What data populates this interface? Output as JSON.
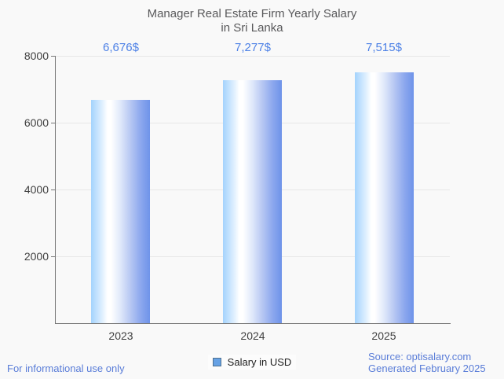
{
  "title": {
    "line1": "Manager Real Estate Firm Yearly Salary",
    "line2": "in Sri Lanka"
  },
  "chart_data": {
    "type": "bar",
    "title": "Manager Real Estate Firm Yearly Salary in Sri Lanka",
    "categories": [
      "2023",
      "2024",
      "2025"
    ],
    "values": [
      6676,
      7277,
      7515
    ],
    "value_labels": [
      "6,676$",
      "7,277$",
      "7,515$"
    ],
    "series": [
      {
        "name": "Salary in USD",
        "values": [
          6676,
          7277,
          7515
        ]
      }
    ],
    "xlabel": "",
    "ylabel": "",
    "ylim": [
      0,
      8000
    ],
    "yticks": [
      2000,
      4000,
      6000,
      8000
    ],
    "grid": true,
    "legend": {
      "label": "Salary in USD",
      "position": "bottom"
    }
  },
  "footer": {
    "disclaimer": "For informational use only",
    "source": "Source: optisalary.com",
    "generated": "Generated February 2025"
  },
  "colors": {
    "background": "#f9f9f9",
    "title_text": "#59595b",
    "axis_text": "#3f3f3f",
    "axis_line": "#777777",
    "grid_line": "#e7e7e7",
    "value_label_blue": "#4c80e6",
    "footer_blue": "#5a7dd8",
    "legend_swatch": "#67a2e5",
    "legend_swatch_border": "#4d7191",
    "bar_gradient_stops": [
      [
        "#a4d3fd",
        "0%"
      ],
      [
        "#dceefe",
        "18%"
      ],
      [
        "#ffffff",
        "28%"
      ],
      [
        "#ffffff",
        "34%"
      ],
      [
        "#dfe8fa",
        "50%"
      ],
      [
        "#b9c9f3",
        "66%"
      ],
      [
        "#8da8ee",
        "84%"
      ],
      [
        "#6e93e9",
        "100%"
      ]
    ]
  }
}
